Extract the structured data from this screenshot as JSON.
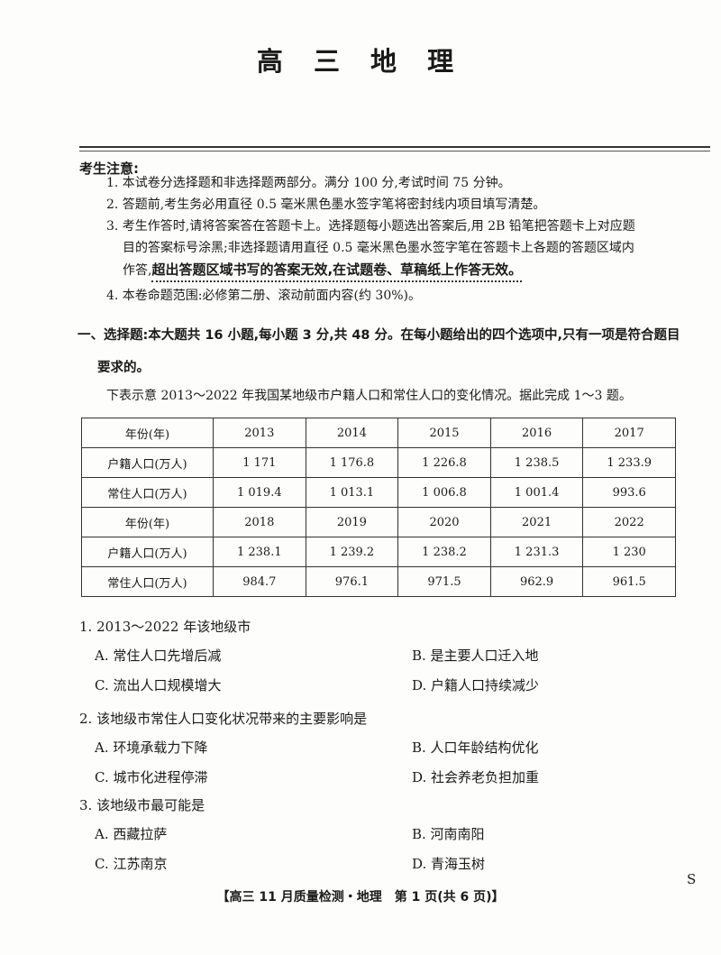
{
  "title": "高 三 地 理",
  "notice": {
    "heading": "考生注意:",
    "items": [
      "1. 本试卷分选择题和非选择题两部分。满分 100 分,考试时间 75 分钟。",
      "2. 答题前,考生务必用直径 0.5 毫米黑色墨水签字笔将密封线内项目填写清楚。",
      "3. 考生作答时,请将答案答在答题卡上。选择题每小题选出答案后,用 2B 铅笔把答题卡上对应题",
      "目的答案标号涂黑;非选择题请用直径 0.5 毫米黑色墨水签字笔在答题卡上各题的答题区域内",
      "作答,",
      "4. 本卷命题范围:必修第二册、滚动前面内容(约 30%)。"
    ],
    "emphasis": "超出答题区域书写的答案无效,在试题卷、草稿纸上作答无效。"
  },
  "section": {
    "heading": "一、选择题:本大题共 16 小题,每小题 3 分,共 48 分。在每小题给出的四个选项中,只有一项是符合题目",
    "heading2": "要求的。",
    "intro": "下表示意 2013～2022 年我国某地级市户籍人口和常住人口的变化情况。据此完成 1～3 题。"
  },
  "table": {
    "rows": [
      [
        "年份(年)",
        "2013",
        "2014",
        "2015",
        "2016",
        "2017"
      ],
      [
        "户籍人口(万人)",
        "1 171",
        "1 176.8",
        "1 226.8",
        "1 238.5",
        "1 233.9"
      ],
      [
        "常住人口(万人)",
        "1 019.4",
        "1 013.1",
        "1 006.8",
        "1 001.4",
        "993.6"
      ],
      [
        "年份(年)",
        "2018",
        "2019",
        "2020",
        "2021",
        "2022"
      ],
      [
        "户籍人口(万人)",
        "1 238.1",
        "1 239.2",
        "1 238.2",
        "1 231.3",
        "1 230"
      ],
      [
        "常住人口(万人)",
        "984.7",
        "976.1",
        "971.5",
        "962.9",
        "961.5"
      ]
    ]
  },
  "questions": [
    {
      "stem": "1. 2013～2022 年该地级市",
      "options": [
        "A. 常住人口先增后减",
        "B. 是主要人口迁入地",
        "C. 流出人口规模增大",
        "D. 户籍人口持续减少"
      ]
    },
    {
      "stem": "2. 该地级市常住人口变化状况带来的主要影响是",
      "options": [
        "A. 环境承载力下降",
        "B. 人口年龄结构优化",
        "C. 城市化进程停滞",
        "D. 社会养老负担加重"
      ]
    },
    {
      "stem": "3. 该地级市最可能是",
      "options": [
        "A. 西藏拉萨",
        "B. 河南南阳",
        "C. 江苏南京",
        "D. 青海玉树"
      ]
    }
  ],
  "footer": "【高三 11 月质量检测・地理　第 1 页(共 6 页)】",
  "corner_mark": "S"
}
